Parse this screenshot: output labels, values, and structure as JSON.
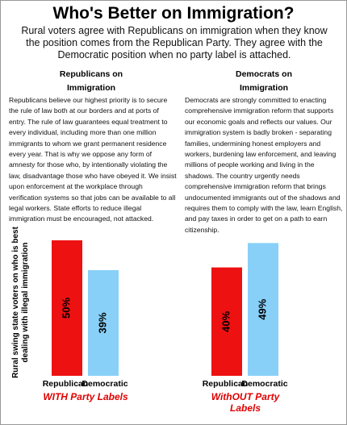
{
  "header": {
    "title": "Who's Better on Immigration?",
    "subtitle": "Rural voters agree with Republicans on immigration when they know the position comes from the Republican Party. They agree with the Democratic position when no party label is attached."
  },
  "columns": [
    {
      "heading": "Republicans on Immigration",
      "text": "Republicans believe our highest priority is to secure the rule of law both at our borders and at ports of entry. The rule of law guarantees equal treatment to every individual, including more than one million immigrants to whom we grant permanent residence every year. That is why we oppose any form of amnesty for those who, by intentionally violating the law, disadvantage those who have obeyed it. We insist upon enforcement at the workplace through verification systems so that jobs can be available to all legal workers. State efforts to reduce illegal immigration must be encouraged, not attacked."
    },
    {
      "heading": "Democrats on Immigration",
      "text": "Democrats are strongly committed to enacting comprehensive immigration reform that supports our economic goals and reflects our values. Our immigration system is badly broken - separating families, undermining honest employers and workers, burdening law enforcement, and leaving millions of people working and living in the shadows. The country urgently needs comprehensive immigration reform that brings undocumented immigrants out of the shadows and requires them to comply with the law, learn English, and pay taxes in order to get on a path to earn citizenship."
    }
  ],
  "chart_data": {
    "type": "bar",
    "y_label": "Rural swing state voters on who is best dealing with illegal immigration",
    "categories": [
      "WITH Party Labels",
      "WithOUT Party Labels"
    ],
    "series": [
      {
        "name": "Republican",
        "color": "#ee1111",
        "values": [
          50,
          40
        ],
        "value_labels": [
          "50%",
          "40%"
        ]
      },
      {
        "name": "Democratic",
        "color": "#88d0f8",
        "values": [
          39,
          49
        ],
        "value_labels": [
          "39%",
          "49%"
        ]
      }
    ]
  }
}
